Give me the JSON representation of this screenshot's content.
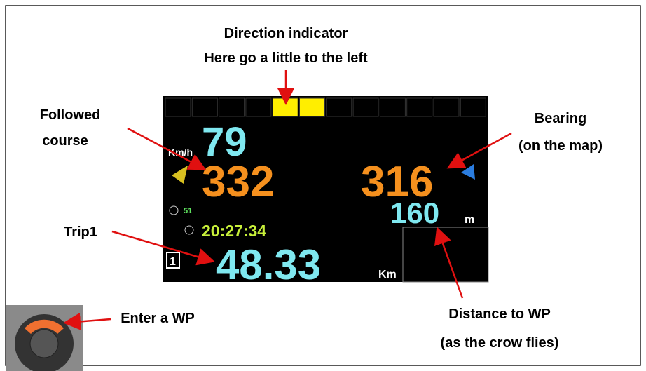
{
  "annotations": {
    "direction": [
      "Direction indicator",
      "Here go a little to the left"
    ],
    "course": [
      "Followed",
      "course"
    ],
    "bearing": [
      "Bearing",
      "(on the map)"
    ],
    "trip": "Trip1",
    "enter_wp": "Enter a WP",
    "distance": [
      "Distance to WP",
      "(as the crow flies)"
    ]
  },
  "display": {
    "speed_unit": "Km/h",
    "speed": "79",
    "course": "332",
    "bearing": "316",
    "satellites": "51",
    "time": "20:27:34",
    "distance": "160",
    "distance_unit": "m",
    "trip_index": "1",
    "trip": "48.33",
    "trip_unit": "Km"
  }
}
